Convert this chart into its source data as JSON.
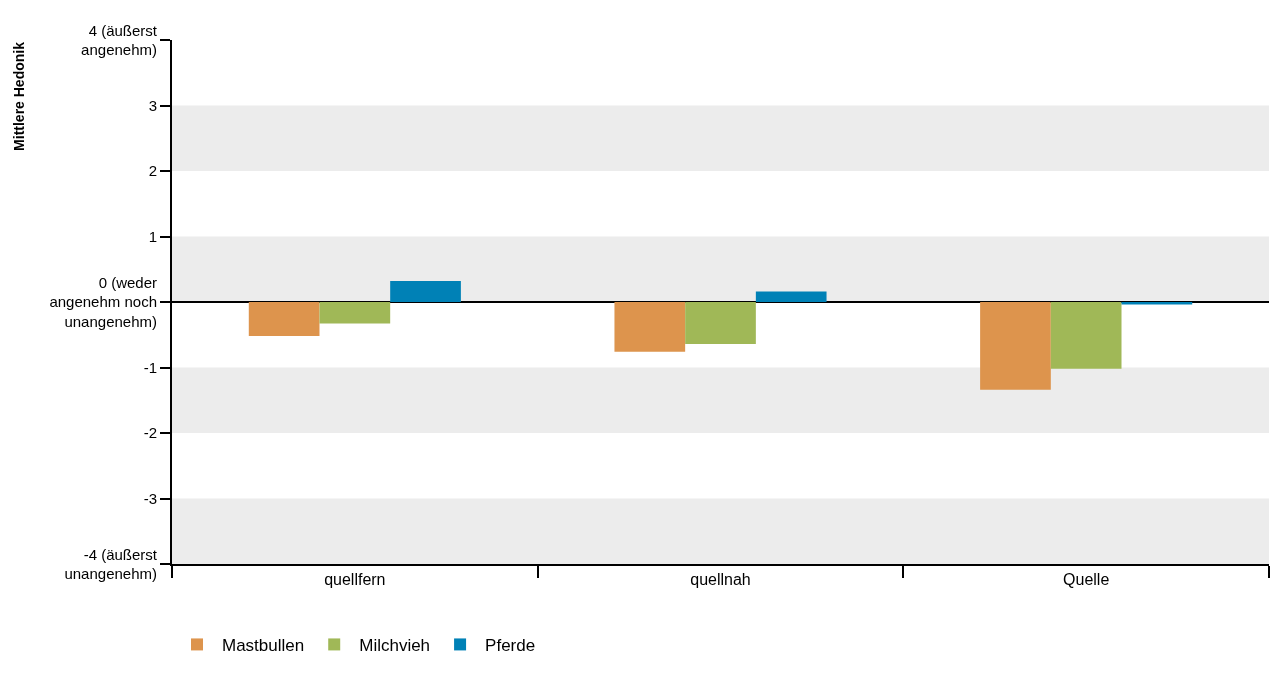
{
  "chart_data": {
    "type": "bar",
    "ylabel": "Mittlere Hedonik",
    "categories": [
      "quellfern",
      "quellnah",
      "Quelle"
    ],
    "series": [
      {
        "name": "Mastbullen",
        "color": "#dd944d",
        "values": [
          -0.52,
          -0.76,
          -1.34
        ]
      },
      {
        "name": "Milchvieh",
        "color": "#a0b857",
        "values": [
          -0.33,
          -0.64,
          -1.02
        ]
      },
      {
        "name": "Pferde",
        "color": "#0081b6",
        "values": [
          0.32,
          0.16,
          -0.04
        ]
      }
    ],
    "ylim": [
      -4,
      4
    ],
    "yticks": [
      {
        "value": -4,
        "label": "-4 (äußerst\nunangenehm)"
      },
      -3,
      -2,
      -1,
      {
        "value": 0,
        "label": "0 (weder\nangenehm noch\nunangenehm)"
      },
      1,
      2,
      3,
      {
        "value": 4,
        "label": "4 (äußerst\nangenehm)"
      }
    ],
    "grid": "y",
    "legend": "bottom left"
  }
}
